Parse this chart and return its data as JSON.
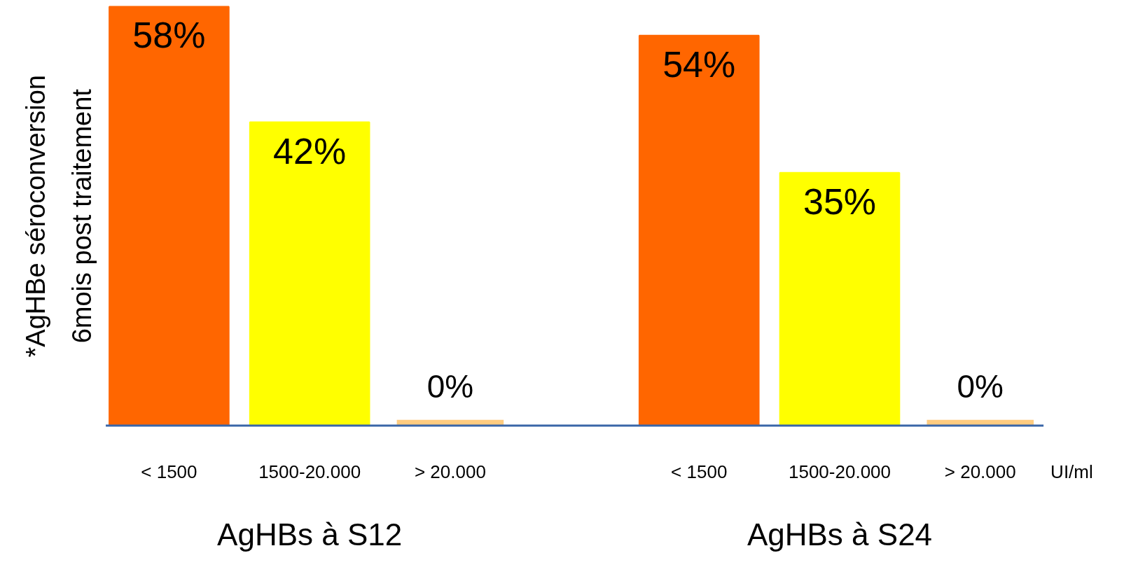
{
  "chart_data": {
    "type": "bar",
    "ylabel": "*AgHBe séroconversion\n6mois post traitement",
    "categories": [
      "< 1500",
      "1500-20.000",
      "> 20.000",
      "< 1500",
      "1500-20.000",
      "> 20.000"
    ],
    "values": [
      58,
      42,
      0,
      54,
      35,
      0
    ],
    "value_labels": [
      "58%",
      "42%",
      "0%",
      "54%",
      "35%",
      "0%"
    ],
    "colors": [
      "#ff6600",
      "#ffff00",
      "#ffcc80",
      "#ff6600",
      "#ffff00",
      "#ffcc80"
    ],
    "grid": false,
    "annotations": [
      "AgHBs à S12",
      "AgHBs à S24",
      "UI/ml"
    ]
  }
}
